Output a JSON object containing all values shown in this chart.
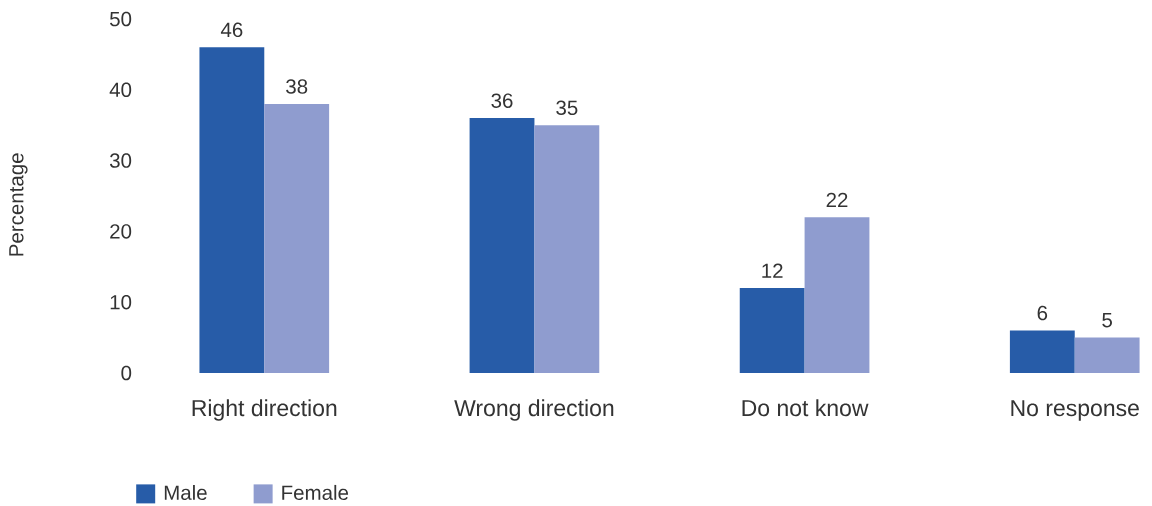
{
  "chart_data": {
    "type": "bar",
    "ylabel": "Percentage",
    "categories": [
      "Right direction",
      "Wrong direction",
      "Do not know",
      "No response"
    ],
    "series": [
      {
        "name": "Male",
        "color": "#275ca8",
        "values": [
          46,
          36,
          12,
          6
        ]
      },
      {
        "name": "Female",
        "color": "#8f9ccf",
        "values": [
          38,
          35,
          22,
          5
        ]
      }
    ],
    "ylim": [
      0,
      50
    ],
    "yticks": [
      0,
      10,
      20,
      30,
      40,
      50
    ],
    "data_labels": true,
    "legend": "bottom left"
  }
}
